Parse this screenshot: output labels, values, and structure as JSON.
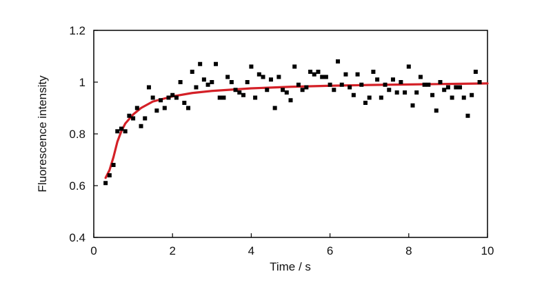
{
  "chart_data": {
    "type": "scatter",
    "title": "",
    "xlabel": "Time / s",
    "ylabel": "Fluorescence intensity",
    "xlim": [
      0,
      10
    ],
    "ylim": [
      0.4,
      1.2
    ],
    "x_ticks": [
      0,
      2,
      4,
      6,
      8,
      10
    ],
    "x_tick_labels": [
      "0",
      "2",
      "4",
      "6",
      "8",
      "10"
    ],
    "y_ticks": [
      0.4,
      0.6,
      0.8,
      1.0,
      1.2
    ],
    "y_tick_labels": [
      "0.4",
      "0.6",
      "0.8",
      "1",
      "1.2"
    ],
    "grid": false,
    "legend": "none",
    "series": [
      {
        "kind": "scatter",
        "marker": "square",
        "color": "#000000",
        "points": [
          [
            0.3,
            0.61
          ],
          [
            0.4,
            0.64
          ],
          [
            0.5,
            0.68
          ],
          [
            0.6,
            0.81
          ],
          [
            0.7,
            0.82
          ],
          [
            0.8,
            0.81
          ],
          [
            0.9,
            0.87
          ],
          [
            1.0,
            0.86
          ],
          [
            1.1,
            0.9
          ],
          [
            1.2,
            0.83
          ],
          [
            1.3,
            0.86
          ],
          [
            1.4,
            0.98
          ],
          [
            1.5,
            0.94
          ],
          [
            1.6,
            0.89
          ],
          [
            1.7,
            0.93
          ],
          [
            1.8,
            0.9
          ],
          [
            1.9,
            0.94
          ],
          [
            2.0,
            0.95
          ],
          [
            2.1,
            0.94
          ],
          [
            2.2,
            1.0
          ],
          [
            2.3,
            0.92
          ],
          [
            2.4,
            0.9
          ],
          [
            2.5,
            1.04
          ],
          [
            2.6,
            0.98
          ],
          [
            2.7,
            1.07
          ],
          [
            2.8,
            1.01
          ],
          [
            2.9,
            0.99
          ],
          [
            3.0,
            1.0
          ],
          [
            3.1,
            1.07
          ],
          [
            3.2,
            0.94
          ],
          [
            3.3,
            0.94
          ],
          [
            3.4,
            1.02
          ],
          [
            3.5,
            1.0
          ],
          [
            3.6,
            0.97
          ],
          [
            3.7,
            0.96
          ],
          [
            3.8,
            0.95
          ],
          [
            3.9,
            1.0
          ],
          [
            4.0,
            1.06
          ],
          [
            4.1,
            0.94
          ],
          [
            4.2,
            1.03
          ],
          [
            4.3,
            1.02
          ],
          [
            4.4,
            0.97
          ],
          [
            4.5,
            1.01
          ],
          [
            4.6,
            0.9
          ],
          [
            4.7,
            1.02
          ],
          [
            4.8,
            0.97
          ],
          [
            4.9,
            0.96
          ],
          [
            5.0,
            0.93
          ],
          [
            5.1,
            1.06
          ],
          [
            5.2,
            0.99
          ],
          [
            5.3,
            0.97
          ],
          [
            5.4,
            0.98
          ],
          [
            5.5,
            1.04
          ],
          [
            5.6,
            1.03
          ],
          [
            5.7,
            1.04
          ],
          [
            5.8,
            1.02
          ],
          [
            5.9,
            1.02
          ],
          [
            6.0,
            0.99
          ],
          [
            6.1,
            0.97
          ],
          [
            6.2,
            1.08
          ],
          [
            6.3,
            0.99
          ],
          [
            6.4,
            1.03
          ],
          [
            6.5,
            0.98
          ],
          [
            6.6,
            0.95
          ],
          [
            6.7,
            1.03
          ],
          [
            6.8,
            0.99
          ],
          [
            6.9,
            0.92
          ],
          [
            7.0,
            0.94
          ],
          [
            7.1,
            1.04
          ],
          [
            7.2,
            1.01
          ],
          [
            7.3,
            0.94
          ],
          [
            7.4,
            0.99
          ],
          [
            7.5,
            0.97
          ],
          [
            7.6,
            1.01
          ],
          [
            7.7,
            0.96
          ],
          [
            7.8,
            1.0
          ],
          [
            7.9,
            0.96
          ],
          [
            8.0,
            1.06
          ],
          [
            8.1,
            0.91
          ],
          [
            8.2,
            0.96
          ],
          [
            8.3,
            1.02
          ],
          [
            8.4,
            0.99
          ],
          [
            8.5,
            0.99
          ],
          [
            8.6,
            0.95
          ],
          [
            8.7,
            0.89
          ],
          [
            8.8,
            1.0
          ],
          [
            8.9,
            0.97
          ],
          [
            9.0,
            0.98
          ],
          [
            9.1,
            0.94
          ],
          [
            9.2,
            0.98
          ],
          [
            9.3,
            0.98
          ],
          [
            9.4,
            0.94
          ],
          [
            9.5,
            0.87
          ],
          [
            9.6,
            0.95
          ],
          [
            9.7,
            1.04
          ],
          [
            9.8,
            1.0
          ]
        ]
      },
      {
        "kind": "line",
        "color": "#d42027",
        "points": [
          [
            0.3,
            0.63
          ],
          [
            0.4,
            0.66
          ],
          [
            0.5,
            0.71
          ],
          [
            0.6,
            0.77
          ],
          [
            0.7,
            0.81
          ],
          [
            0.8,
            0.84
          ],
          [
            1.0,
            0.875
          ],
          [
            1.2,
            0.9
          ],
          [
            1.5,
            0.925
          ],
          [
            2.0,
            0.945
          ],
          [
            2.5,
            0.958
          ],
          [
            3.0,
            0.966
          ],
          [
            4.0,
            0.976
          ],
          [
            5.0,
            0.982
          ],
          [
            6.0,
            0.986
          ],
          [
            7.0,
            0.989
          ],
          [
            8.0,
            0.991
          ],
          [
            9.0,
            0.993
          ],
          [
            10.0,
            0.995
          ]
        ]
      }
    ]
  }
}
